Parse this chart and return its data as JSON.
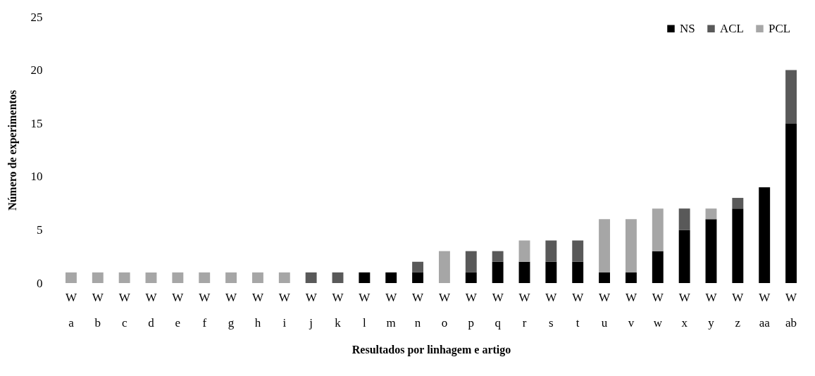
{
  "chart_data": {
    "type": "bar",
    "stacked": true,
    "xlabel": "Resultados por linhagem e artigo",
    "ylabel": "Número de experimentos",
    "categories": [
      "W\na",
      "W\nb",
      "W\nc",
      "W\nd",
      "W\ne",
      "W\nf",
      "W\ng",
      "W\nh",
      "W\ni",
      "W\nj",
      "W\nk",
      "W\nl",
      "W\nm",
      "W\nn",
      "W\no",
      "W\np",
      "W\nq",
      "W\nr",
      "W\ns",
      "W\nt",
      "W\nu",
      "W\nv",
      "W\nw",
      "W\nx",
      "W\ny",
      "W\nz",
      "W\naa",
      "W\nab"
    ],
    "series": [
      {
        "name": "NS",
        "color": "#000000",
        "values": [
          null,
          null,
          null,
          null,
          null,
          null,
          null,
          null,
          null,
          null,
          null,
          1,
          1,
          1,
          null,
          1,
          2,
          2,
          2,
          2,
          1,
          1,
          3,
          5,
          6,
          7,
          9,
          15
        ]
      },
      {
        "name": "ACL",
        "color": "#595959",
        "values": [
          null,
          null,
          null,
          null,
          null,
          null,
          null,
          null,
          null,
          1,
          1,
          null,
          null,
          1,
          null,
          2,
          1,
          null,
          2,
          2,
          null,
          null,
          null,
          2,
          null,
          1,
          null,
          5
        ]
      },
      {
        "name": "PCL",
        "color": "#a6a6a6",
        "values": [
          1,
          1,
          1,
          1,
          1,
          1,
          1,
          1,
          1,
          null,
          null,
          null,
          null,
          null,
          3,
          null,
          null,
          2,
          null,
          null,
          5,
          5,
          4,
          null,
          1,
          null,
          null,
          null
        ]
      }
    ],
    "ylim": [
      0,
      25
    ],
    "yticks": [
      0,
      5,
      10,
      15,
      20,
      25
    ],
    "grid": false,
    "legend": "top right"
  }
}
